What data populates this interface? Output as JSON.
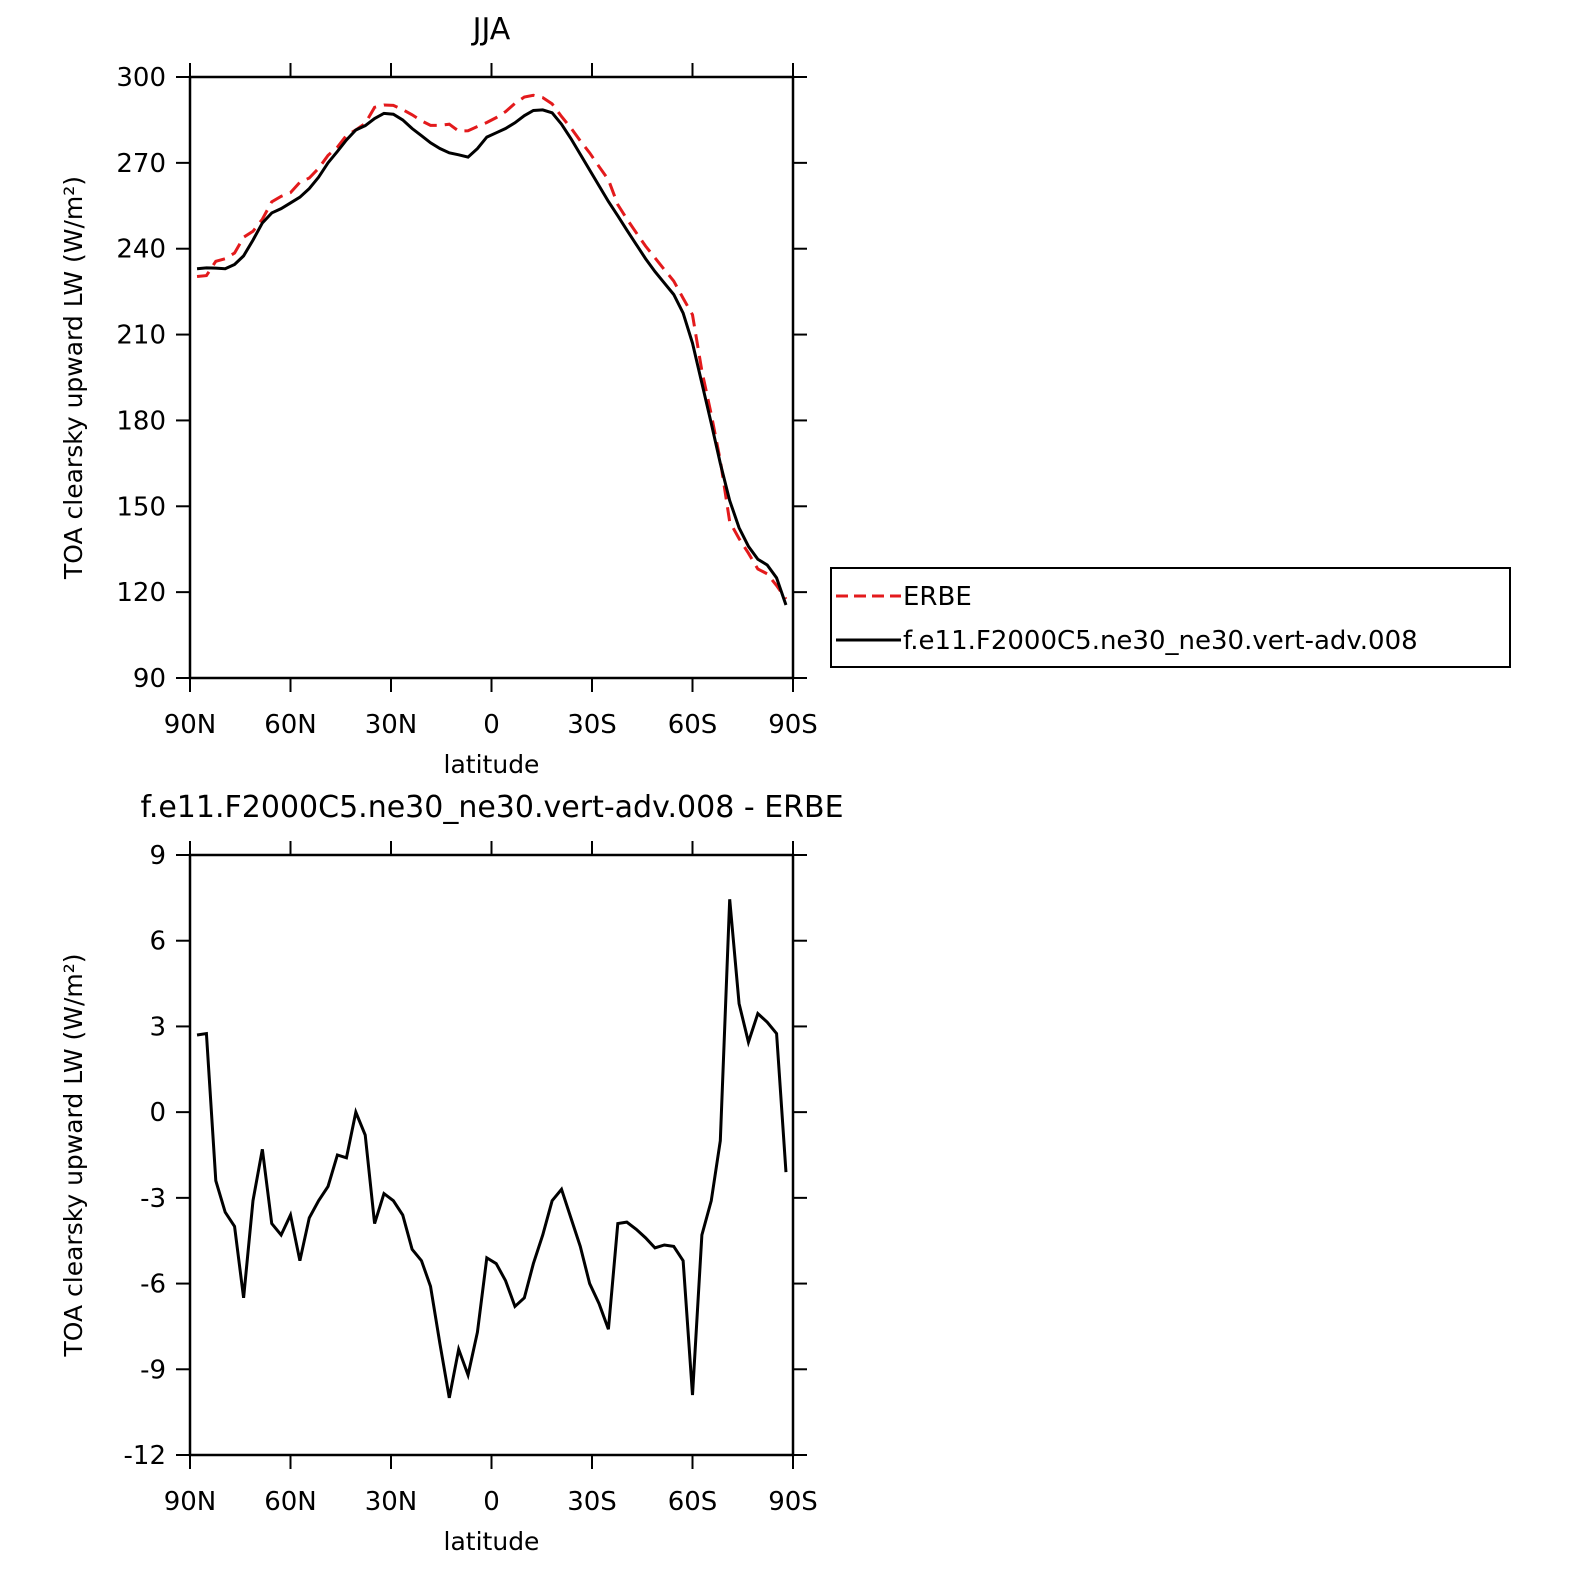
{
  "chart_data": [
    {
      "type": "line",
      "title": "JJA",
      "xlabel": "latitude",
      "ylabel": "TOA clearsky upward LW (W/m²)",
      "x": [
        87.9,
        85.1,
        82.3,
        79.5,
        76.7,
        74.0,
        71.2,
        68.4,
        65.6,
        62.8,
        60.0,
        57.2,
        54.4,
        51.6,
        48.8,
        46.0,
        43.3,
        40.5,
        37.7,
        34.9,
        32.1,
        29.3,
        26.5,
        23.7,
        20.9,
        18.2,
        15.4,
        12.6,
        9.8,
        7.0,
        4.2,
        1.4,
        -1.4,
        -4.2,
        -7.0,
        -9.8,
        -12.5,
        -15.3,
        -18.1,
        -20.9,
        -23.7,
        -26.5,
        -29.3,
        -32.1,
        -34.9,
        -37.7,
        -40.4,
        -43.2,
        -46.0,
        -48.8,
        -51.6,
        -54.4,
        -57.2,
        -60.0,
        -62.8,
        -65.6,
        -68.3,
        -71.1,
        -73.9,
        -76.7,
        -79.5,
        -82.3,
        -85.1,
        -87.9
      ],
      "series": [
        {
          "name": "ERBE",
          "color": "#e31a1c",
          "dashed": true,
          "values": [
            230.3,
            230.6,
            235.6,
            236.5,
            238.5,
            244,
            246.1,
            250.3,
            256.4,
            258.3,
            259.6,
            263.2,
            264.7,
            268.1,
            272.6,
            275.5,
            279.6,
            281.5,
            283.8,
            289.4,
            290.2,
            290.1,
            288.6,
            286.8,
            284.7,
            283.1,
            283.1,
            283.5,
            281.1,
            281.2,
            282.7,
            284.1,
            285.8,
            287.9,
            290.8,
            293,
            293.6,
            292.8,
            290.6,
            286.2,
            282.2,
            277.7,
            273.5,
            268.7,
            264.1,
            255.4,
            250.4,
            245.6,
            240.9,
            236.8,
            232.7,
            228.7,
            222.7,
            216.9,
            197.3,
            182.1,
            166,
            144.6,
            138.7,
            133.6,
            128.1,
            126.4,
            122.3,
            117.6
          ]
        },
        {
          "name": "f.e11.F2000C5.ne30_ne30.vert-adv.008",
          "color": "#000000",
          "dashed": false,
          "values": [
            233,
            233.3,
            233.2,
            233,
            234.5,
            237.5,
            243,
            249,
            252.5,
            254,
            256,
            258,
            261,
            265,
            270,
            274,
            278,
            281.5,
            283,
            285.5,
            287.3,
            287,
            285,
            282,
            279.5,
            277,
            275,
            273.5,
            272.8,
            272,
            275,
            279,
            280.5,
            282,
            284,
            286.5,
            288.3,
            288.5,
            287.5,
            283.5,
            278.5,
            273,
            267.5,
            262,
            256.5,
            251.5,
            246.5,
            241.5,
            236.5,
            232,
            228,
            224,
            217.5,
            207,
            193,
            179,
            165,
            152,
            142.5,
            136,
            131.5,
            129.5,
            125,
            115.5
          ]
        }
      ],
      "xlim": [
        90,
        -90
      ],
      "xticks": [
        {
          "value": 90,
          "label": "90N"
        },
        {
          "value": 60,
          "label": "60N"
        },
        {
          "value": 30,
          "label": "30N"
        },
        0,
        {
          "value": -30,
          "label": "30S"
        },
        {
          "value": -60,
          "label": "60S"
        },
        {
          "value": -90,
          "label": "90S"
        }
      ],
      "ylim": [
        90,
        300
      ],
      "yticks": [
        90,
        120,
        150,
        180,
        210,
        240,
        270,
        300
      ],
      "legend": "right"
    },
    {
      "type": "line",
      "title": "f.e11.F2000C5.ne30_ne30.vert-adv.008 - ERBE",
      "xlabel": "latitude",
      "ylabel": "TOA clearsky upward LW (W/m²)",
      "x": [
        87.9,
        85.1,
        82.3,
        79.5,
        76.7,
        74.0,
        71.2,
        68.4,
        65.6,
        62.8,
        60.0,
        57.2,
        54.4,
        51.6,
        48.8,
        46.0,
        43.3,
        40.5,
        37.7,
        34.9,
        32.1,
        29.3,
        26.5,
        23.7,
        20.9,
        18.2,
        15.4,
        12.6,
        9.8,
        7.0,
        4.2,
        1.4,
        -1.4,
        -4.2,
        -7.0,
        -9.8,
        -12.5,
        -15.3,
        -18.1,
        -20.9,
        -23.7,
        -26.5,
        -29.3,
        -32.1,
        -34.9,
        -37.7,
        -40.4,
        -43.2,
        -46.0,
        -48.8,
        -51.6,
        -54.4,
        -57.2,
        -60.0,
        -62.8,
        -65.6,
        -68.3,
        -71.1,
        -73.9,
        -76.7,
        -79.5,
        -82.3,
        -85.1,
        -87.9
      ],
      "color": "#000000",
      "values": [
        2.7,
        2.75,
        -2.4,
        -3.5,
        -4.0,
        -6.5,
        -3.1,
        -1.3,
        -3.9,
        -4.3,
        -3.6,
        -5.2,
        -3.7,
        -3.1,
        -2.6,
        -1.5,
        -1.6,
        0.0,
        -0.8,
        -3.9,
        -2.85,
        -3.1,
        -3.6,
        -4.8,
        -5.2,
        -6.1,
        -8.1,
        -10.0,
        -8.3,
        -9.2,
        -7.7,
        -5.1,
        -5.3,
        -5.9,
        -6.8,
        -6.5,
        -5.3,
        -4.3,
        -3.1,
        -2.7,
        -3.7,
        -4.7,
        -6.0,
        -6.7,
        -7.6,
        -3.9,
        -3.85,
        -4.1,
        -4.4,
        -4.75,
        -4.65,
        -4.7,
        -5.2,
        -9.9,
        -4.3,
        -3.1,
        -1.0,
        7.45,
        3.8,
        2.45,
        3.45,
        3.15,
        2.75,
        -2.1
      ],
      "xlim": [
        90,
        -90
      ],
      "xticks": [
        {
          "value": 90,
          "label": "90N"
        },
        {
          "value": 60,
          "label": "60N"
        },
        {
          "value": 30,
          "label": "30N"
        },
        0,
        {
          "value": -30,
          "label": "30S"
        },
        {
          "value": -60,
          "label": "60S"
        },
        {
          "value": -90,
          "label": "90S"
        }
      ],
      "ylim": [
        -12,
        9
      ],
      "yticks": [
        -12,
        -9,
        -6,
        -3,
        0,
        3,
        6,
        9
      ]
    }
  ]
}
